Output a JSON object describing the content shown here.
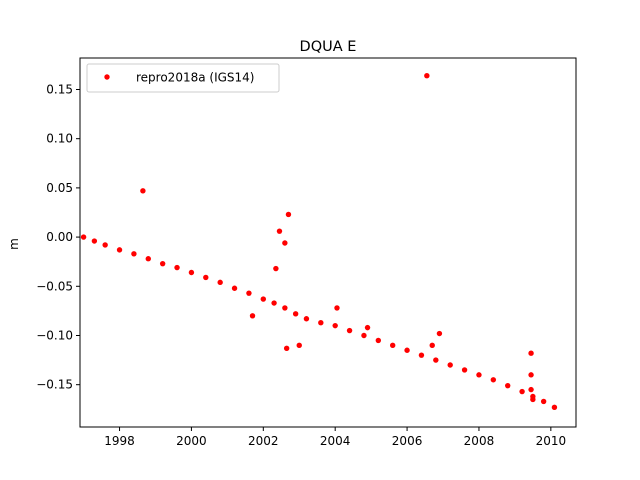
{
  "chart_data": {
    "type": "scatter",
    "title": "DQUA E",
    "xlabel": "",
    "ylabel": "m",
    "xlim": [
      1996.9,
      2010.7
    ],
    "ylim": [
      -0.193,
      0.182
    ],
    "x_ticks": [
      1998,
      2000,
      2002,
      2004,
      2006,
      2008,
      2010
    ],
    "x_tick_labels": [
      "1998",
      "2000",
      "2002",
      "2004",
      "2006",
      "2008",
      "2010"
    ],
    "y_ticks": [
      -0.15,
      -0.1,
      -0.05,
      0.0,
      0.05,
      0.1,
      0.15
    ],
    "y_tick_labels": [
      "−0.15",
      "−0.10",
      "−0.05",
      "0.00",
      "0.05",
      "0.10",
      "0.15"
    ],
    "grid": false,
    "legend_position": "top-left",
    "series": [
      {
        "name": "repro2018a (IGS14)",
        "color": "#ff0000",
        "marker": "circle",
        "x": [
          1997.0,
          1997.3,
          1997.6,
          1998.0,
          1998.4,
          1998.8,
          1999.2,
          1999.6,
          2000.0,
          2000.4,
          2000.8,
          2001.2,
          2001.6,
          2002.0,
          2002.3,
          2002.6,
          2002.9,
          2003.2,
          2003.6,
          2004.0,
          2004.4,
          2004.8,
          2005.2,
          2005.6,
          2006.0,
          2006.4,
          2006.8,
          2007.2,
          2007.6,
          2008.0,
          2008.4,
          2008.8,
          2009.2,
          2009.5,
          2009.8,
          2010.1,
          1998.65,
          2006.55,
          2002.45,
          2002.7,
          2002.6,
          2002.35,
          2004.05,
          2003.0,
          2002.65,
          2001.7,
          2004.9,
          2006.9,
          2006.7,
          2009.45,
          2009.45,
          2009.45,
          2009.5
        ],
        "y": [
          0.0,
          -0.004,
          -0.008,
          -0.013,
          -0.017,
          -0.022,
          -0.027,
          -0.031,
          -0.036,
          -0.041,
          -0.046,
          -0.052,
          -0.057,
          -0.063,
          -0.067,
          -0.072,
          -0.078,
          -0.083,
          -0.087,
          -0.09,
          -0.095,
          -0.1,
          -0.105,
          -0.11,
          -0.115,
          -0.12,
          -0.125,
          -0.13,
          -0.135,
          -0.14,
          -0.145,
          -0.151,
          -0.157,
          -0.162,
          -0.167,
          -0.173,
          0.047,
          0.164,
          0.006,
          0.023,
          -0.006,
          -0.032,
          -0.072,
          -0.11,
          -0.113,
          -0.08,
          -0.092,
          -0.098,
          -0.11,
          -0.118,
          -0.14,
          -0.155,
          -0.165
        ]
      }
    ]
  }
}
